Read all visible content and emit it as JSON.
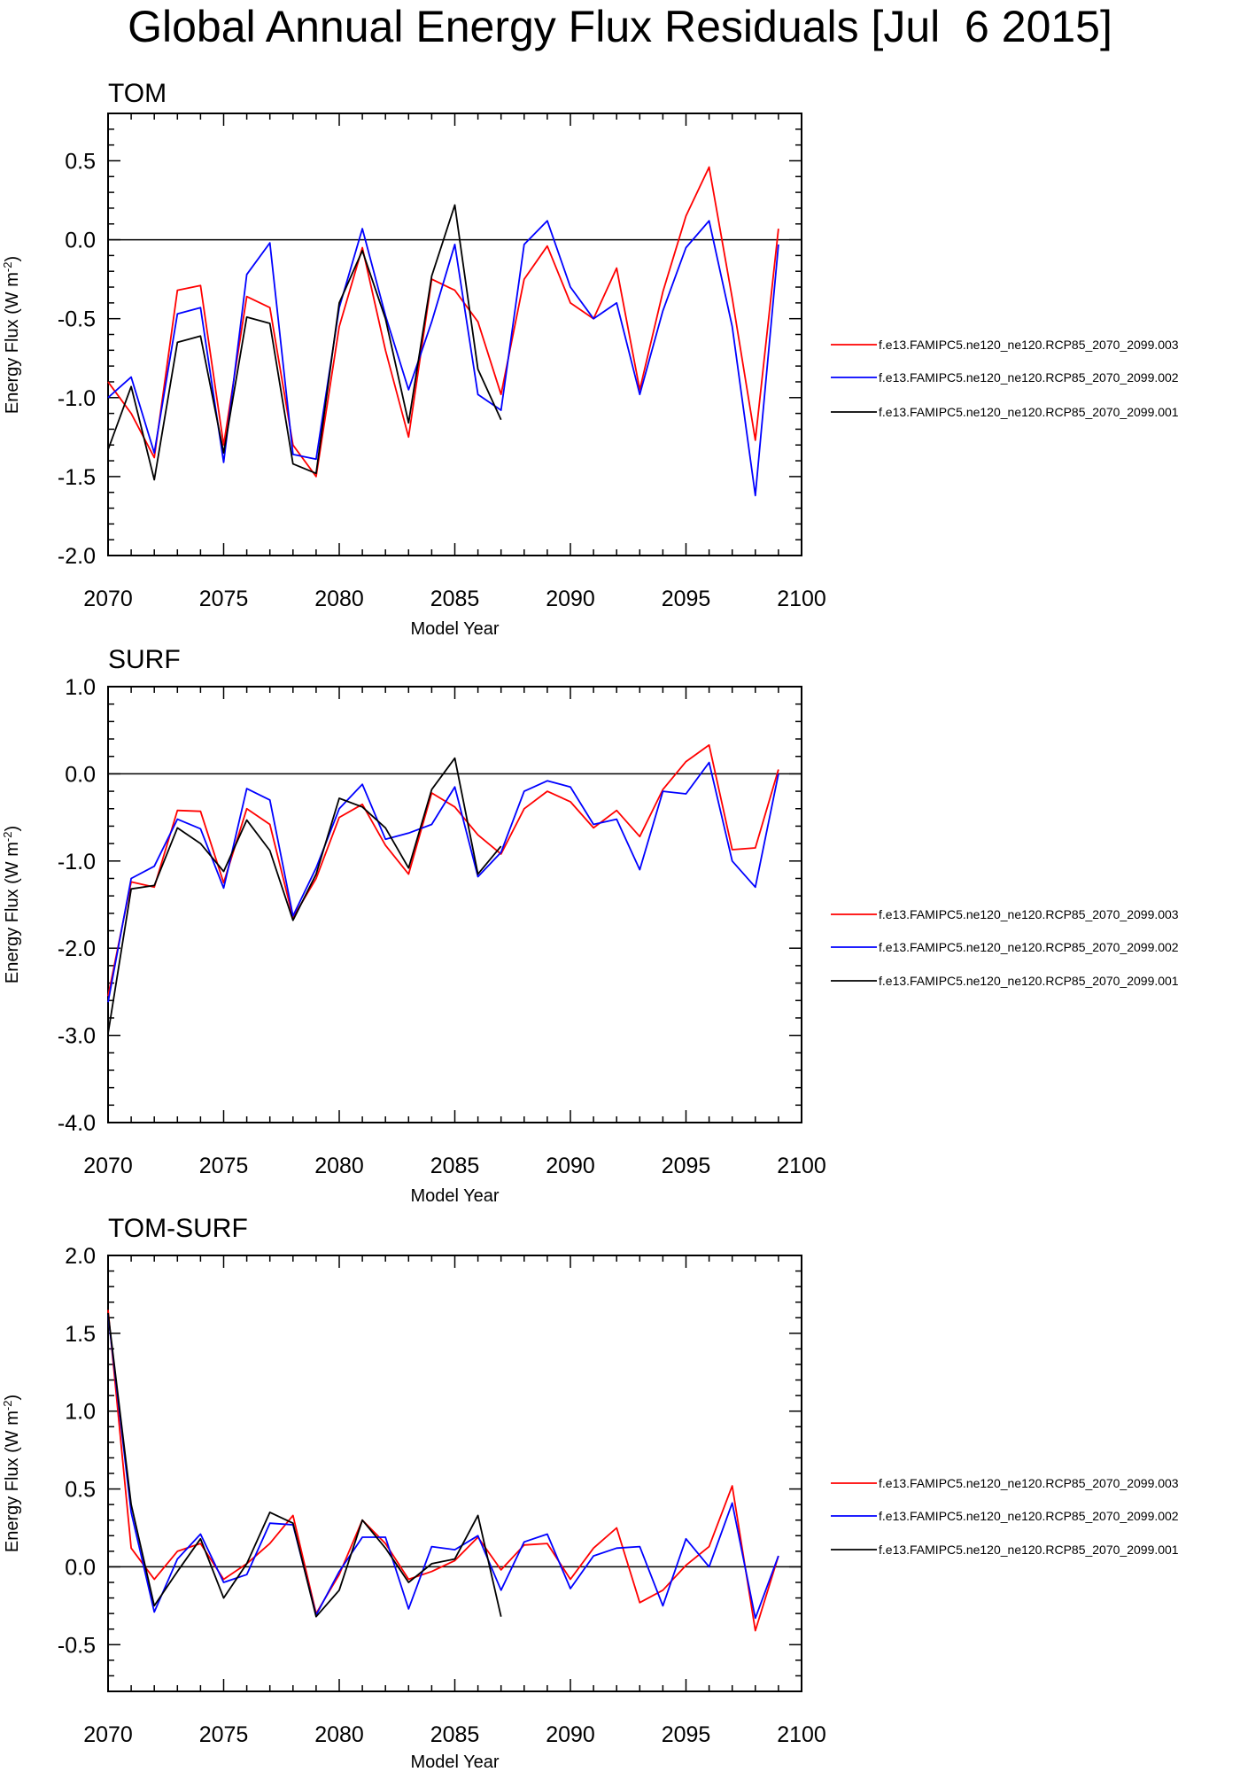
{
  "figure": {
    "title": "Global Annual Energy Flux Residuals [Jul  6 2015]"
  },
  "colors": {
    "series_003": "#ff0000",
    "series_002": "#0000ff",
    "series_001": "#000000"
  },
  "chart_data": [
    {
      "type": "line",
      "title": "TOM",
      "xlabel": "Model Year",
      "ylabel": "Energy Flux (W m-2)",
      "xlim": [
        2070,
        2100
      ],
      "ylim": [
        -2.0,
        0.8
      ],
      "yticks": [
        "0.5",
        "0.0",
        "-0.5",
        "-1.0",
        "-1.5",
        "-2.0"
      ],
      "xticks": [
        "2070",
        "2075",
        "2080",
        "2085",
        "2090",
        "2095",
        "2100"
      ],
      "legend_position": "right",
      "series": [
        {
          "name": "f.e13.FAMIPC5.ne120_ne120.RCP85_2070_2099.003",
          "color": "#ff0000",
          "x_start": 2070,
          "values": [
            -0.9,
            -1.1,
            -1.38,
            -0.32,
            -0.29,
            -1.3,
            -0.36,
            -0.43,
            -1.3,
            -1.5,
            -0.55,
            -0.05,
            -0.7,
            -1.25,
            -0.25,
            -0.32,
            -0.52,
            -0.98,
            -0.25,
            -0.04,
            -0.4,
            -0.5,
            -0.18,
            -0.95,
            -0.33,
            0.15,
            0.46,
            -0.37,
            -1.27,
            0.07
          ]
        },
        {
          "name": "f.e13.FAMIPC5.ne120_ne120.RCP85_2070_2099.002",
          "color": "#0000ff",
          "x_start": 2070,
          "values": [
            -1.0,
            -0.87,
            -1.35,
            -0.47,
            -0.43,
            -1.41,
            -0.22,
            -0.02,
            -1.36,
            -1.39,
            -0.43,
            0.07,
            -0.48,
            -0.95,
            -0.52,
            -0.03,
            -0.98,
            -1.08,
            -0.03,
            0.12,
            -0.3,
            -0.5,
            -0.4,
            -0.98,
            -0.45,
            -0.05,
            0.12,
            -0.55,
            -1.62,
            -0.03
          ]
        },
        {
          "name": "f.e13.FAMIPC5.ne120_ne120.RCP85_2070_2099.001",
          "color": "#000000",
          "x_start": 2070,
          "values": [
            -1.33,
            -0.93,
            -1.52,
            -0.65,
            -0.61,
            -1.35,
            -0.49,
            -0.53,
            -1.42,
            -1.48,
            -0.4,
            -0.07,
            -0.5,
            -1.16,
            -0.23,
            0.22,
            -0.82,
            -1.14
          ]
        }
      ]
    },
    {
      "type": "line",
      "title": "SURF",
      "xlabel": "Model Year",
      "ylabel": "Energy Flux (W m-2)",
      "xlim": [
        2070,
        2100
      ],
      "ylim": [
        -4.0,
        1.0
      ],
      "yticks": [
        "1.0",
        "0.0",
        "-1.0",
        "-2.0",
        "-3.0",
        "-4.0"
      ],
      "xticks": [
        "2070",
        "2075",
        "2080",
        "2085",
        "2090",
        "2095",
        "2100"
      ],
      "legend_position": "right",
      "series": [
        {
          "name": "f.e13.FAMIPC5.ne120_ne120.RCP85_2070_2099.003",
          "color": "#ff0000",
          "x_start": 2070,
          "values": [
            -2.55,
            -1.24,
            -1.3,
            -0.42,
            -0.43,
            -1.25,
            -0.4,
            -0.58,
            -1.65,
            -1.2,
            -0.5,
            -0.35,
            -0.82,
            -1.15,
            -0.22,
            -0.38,
            -0.7,
            -0.92,
            -0.4,
            -0.2,
            -0.32,
            -0.62,
            -0.42,
            -0.72,
            -0.18,
            0.14,
            0.33,
            -0.87,
            -0.85,
            0.05
          ]
        },
        {
          "name": "f.e13.FAMIPC5.ne120_ne120.RCP85_2070_2099.002",
          "color": "#0000ff",
          "x_start": 2070,
          "values": [
            -2.62,
            -1.2,
            -1.06,
            -0.52,
            -0.63,
            -1.31,
            -0.17,
            -0.3,
            -1.63,
            -1.08,
            -0.4,
            -0.12,
            -0.75,
            -0.68,
            -0.58,
            -0.15,
            -1.18,
            -0.9,
            -0.2,
            -0.08,
            -0.15,
            -0.58,
            -0.52,
            -1.1,
            -0.2,
            -0.23,
            0.13,
            -1.0,
            -1.3,
            0.0
          ]
        },
        {
          "name": "f.e13.FAMIPC5.ne120_ne120.RCP85_2070_2099.001",
          "color": "#000000",
          "x_start": 2070,
          "values": [
            -2.98,
            -1.32,
            -1.28,
            -0.62,
            -0.8,
            -1.12,
            -0.53,
            -0.88,
            -1.68,
            -1.15,
            -0.28,
            -0.38,
            -0.62,
            -1.08,
            -0.18,
            0.18,
            -1.15,
            -0.83
          ]
        }
      ]
    },
    {
      "type": "line",
      "title": "TOM-SURF",
      "xlabel": "Model Year",
      "ylabel": "Energy Flux (W m-2)",
      "xlim": [
        2070,
        2100
      ],
      "ylim": [
        -0.8,
        2.0
      ],
      "yticks": [
        "2.0",
        "1.5",
        "1.0",
        "0.5",
        "0.0",
        "-0.5"
      ],
      "xticks": [
        "2070",
        "2075",
        "2080",
        "2085",
        "2090",
        "2095",
        "2100"
      ],
      "legend_position": "right",
      "series": [
        {
          "name": "f.e13.FAMIPC5.ne120_ne120.RCP85_2070_2099.003",
          "color": "#ff0000",
          "x_start": 2070,
          "values": [
            1.65,
            0.12,
            -0.08,
            0.1,
            0.15,
            -0.08,
            0.02,
            0.15,
            0.33,
            -0.3,
            -0.05,
            0.3,
            0.15,
            -0.08,
            -0.03,
            0.04,
            0.19,
            -0.02,
            0.14,
            0.15,
            -0.08,
            0.12,
            0.25,
            -0.23,
            -0.15,
            0.01,
            0.13,
            0.52,
            -0.41,
            0.07
          ]
        },
        {
          "name": "f.e13.FAMIPC5.ne120_ne120.RCP85_2070_2099.002",
          "color": "#0000ff",
          "x_start": 2070,
          "values": [
            1.62,
            0.35,
            -0.29,
            0.05,
            0.21,
            -0.1,
            -0.05,
            0.28,
            0.27,
            -0.31,
            -0.03,
            0.19,
            0.19,
            -0.27,
            0.13,
            0.11,
            0.2,
            -0.15,
            0.16,
            0.21,
            -0.14,
            0.07,
            0.12,
            0.13,
            -0.25,
            0.18,
            0.0,
            0.41,
            -0.33,
            0.07
          ]
        },
        {
          "name": "f.e13.FAMIPC5.ne120_ne120.RCP85_2070_2099.001",
          "color": "#000000",
          "x_start": 2070,
          "values": [
            1.63,
            0.4,
            -0.25,
            -0.03,
            0.18,
            -0.2,
            0.02,
            0.35,
            0.28,
            -0.32,
            -0.15,
            0.3,
            0.12,
            -0.1,
            0.02,
            0.05,
            0.33,
            -0.32
          ]
        }
      ]
    }
  ]
}
